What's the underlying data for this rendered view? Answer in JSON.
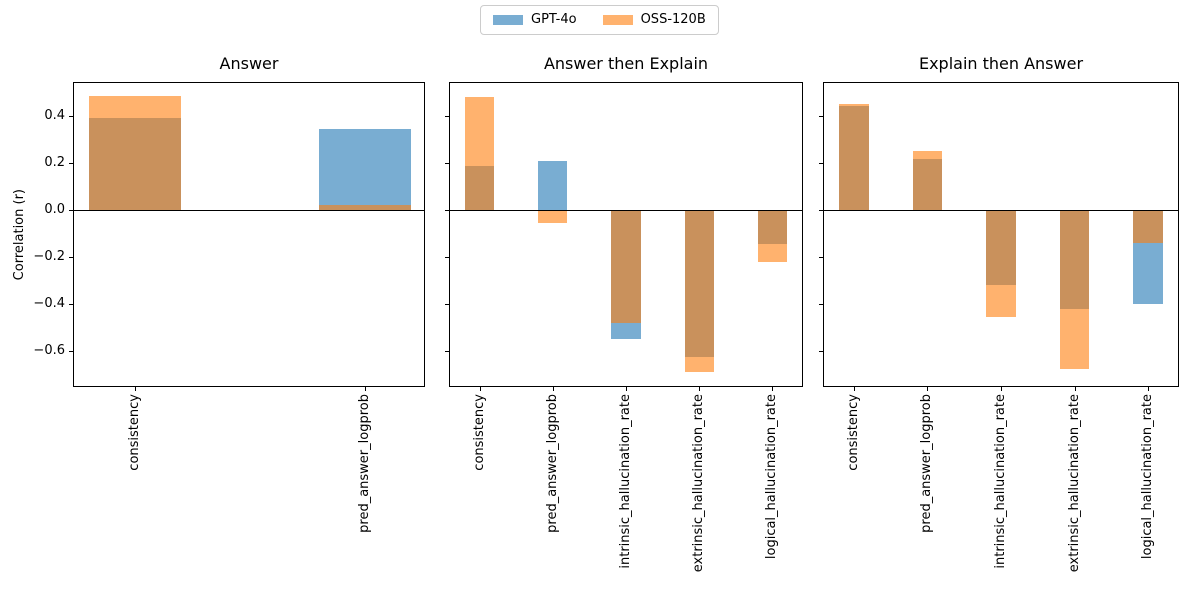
{
  "legend": {
    "items": [
      {
        "label": "GPT-4o",
        "color": "#1f77b4",
        "fill": "rgba(31,119,180,0.6)"
      },
      {
        "label": "OSS-120B",
        "color": "#ff7f0e",
        "fill": "rgba(255,127,14,0.6)"
      }
    ]
  },
  "chart_data": [
    {
      "type": "bar",
      "title": "Answer",
      "ylabel": "Correlation (r)",
      "categories": [
        "consistency",
        "pred_answer_logprob"
      ],
      "series": [
        {
          "name": "GPT-4o",
          "values": [
            0.39,
            0.345
          ]
        },
        {
          "name": "OSS-120B",
          "values": [
            0.485,
            0.02
          ]
        }
      ],
      "bar_style": "overlapping-translucent",
      "bar_width": 0.4,
      "xlim": [
        -0.27,
        1.26
      ],
      "ylim": [
        -0.752,
        0.544
      ],
      "yticks": [
        0.4,
        0.2,
        0.0,
        -0.2,
        -0.4,
        -0.6
      ],
      "ytick_labels_visible": true,
      "zero_line": true,
      "grid": false
    },
    {
      "type": "bar",
      "title": "Answer then Explain",
      "ylabel": "",
      "categories": [
        "consistency",
        "pred_answer_logprob",
        "intrinsic_hallucination_rate",
        "extrinsic_hallucination_rate",
        "logical_hallucination_rate"
      ],
      "series": [
        {
          "name": "GPT-4o",
          "values": [
            0.185,
            0.21,
            -0.55,
            -0.625,
            -0.145
          ]
        },
        {
          "name": "OSS-120B",
          "values": [
            0.48,
            -0.055,
            -0.48,
            -0.69,
            -0.22
          ]
        }
      ],
      "bar_style": "overlapping-translucent",
      "bar_width": 0.4,
      "xlim": [
        -0.42,
        4.42
      ],
      "ylim": [
        -0.752,
        0.544
      ],
      "yticks": [
        0.4,
        0.2,
        0.0,
        -0.2,
        -0.4,
        -0.6
      ],
      "ytick_labels_visible": false,
      "zero_line": true,
      "grid": false
    },
    {
      "type": "bar",
      "title": "Explain then Answer",
      "ylabel": "",
      "categories": [
        "consistency",
        "pred_answer_logprob",
        "intrinsic_hallucination_rate",
        "extrinsic_hallucination_rate",
        "logical_hallucination_rate"
      ],
      "series": [
        {
          "name": "GPT-4o",
          "values": [
            0.44,
            0.215,
            -0.32,
            -0.42,
            -0.4
          ]
        },
        {
          "name": "OSS-120B",
          "values": [
            0.45,
            0.25,
            -0.455,
            -0.675,
            -0.14
          ]
        }
      ],
      "bar_style": "overlapping-translucent",
      "bar_width": 0.4,
      "xlim": [
        -0.42,
        4.42
      ],
      "ylim": [
        -0.752,
        0.544
      ],
      "yticks": [
        0.4,
        0.2,
        0.0,
        -0.2,
        -0.4,
        -0.6
      ],
      "ytick_labels_visible": false,
      "zero_line": true,
      "grid": false
    }
  ]
}
